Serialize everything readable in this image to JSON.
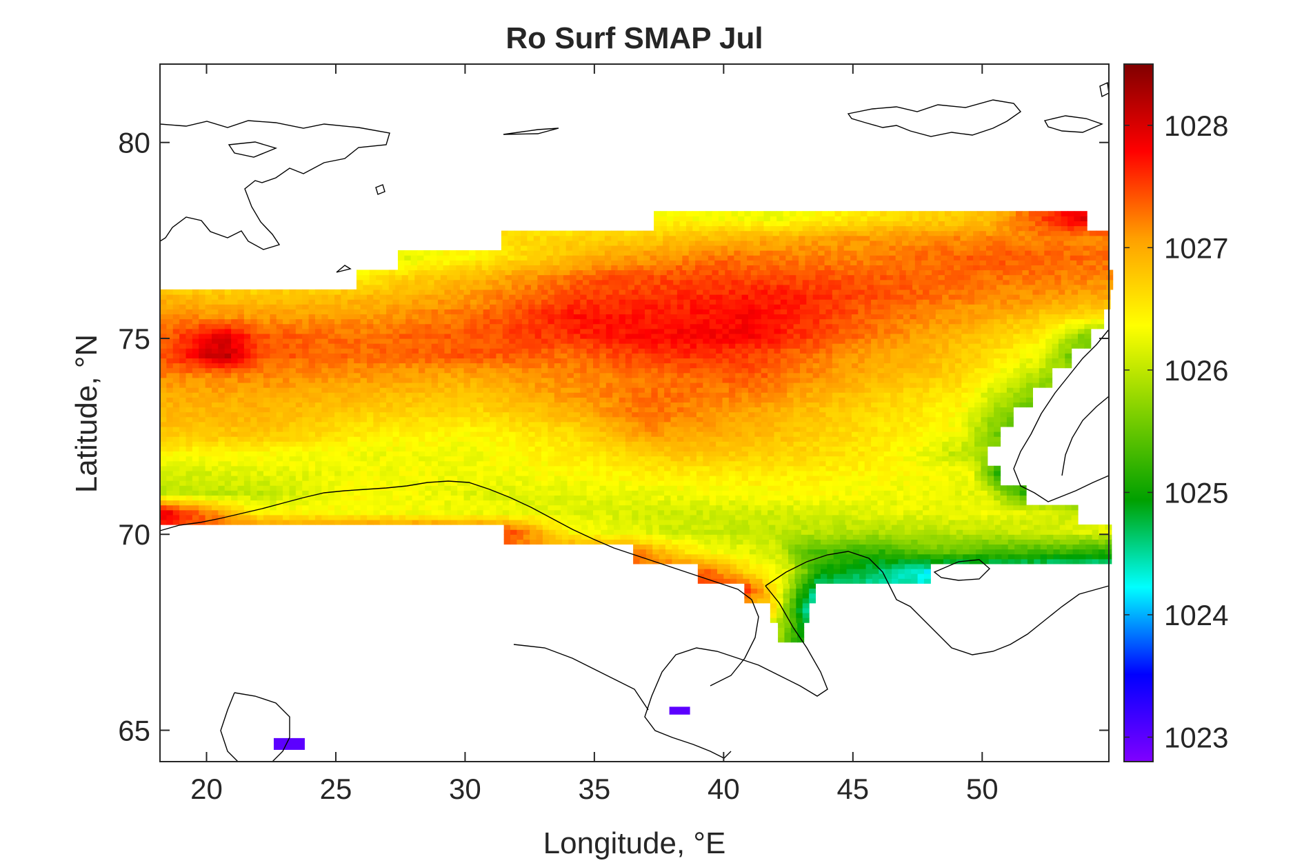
{
  "chart_data": {
    "type": "heatmap",
    "title": "Ro Surf SMAP Jul",
    "xlabel": "Longitude, °E",
    "ylabel": "Latitude, °N",
    "xlim": [
      18.2,
      54.9
    ],
    "ylim": [
      64.2,
      82.0
    ],
    "xticks": [
      20,
      25,
      30,
      35,
      40,
      45,
      50
    ],
    "yticks": [
      65,
      70,
      75,
      80
    ],
    "grid": false,
    "colorbar": {
      "range": [
        1022.8,
        1028.5
      ],
      "ticks": [
        1023,
        1024,
        1025,
        1026,
        1027,
        1028
      ],
      "colormap": [
        "#8000ff",
        "#0000ff",
        "#00ffff",
        "#00a000",
        "#80d000",
        "#ffff00",
        "#ffa000",
        "#ff0000",
        "#800000"
      ]
    },
    "field": {
      "lon_step": 0.25,
      "lat_step": 0.125,
      "rows": [
        {
          "lat": 78.0,
          "lon_start": 37.3,
          "lon_end": 54.0,
          "values": [
            [
              37.3,
              1026.4
            ],
            [
              42.0,
              1026.3
            ],
            [
              46.0,
              1026.6
            ],
            [
              50.0,
              1026.8
            ],
            [
              53.5,
              1027.9
            ]
          ]
        },
        {
          "lat": 77.5,
          "lon_start": 31.4,
          "lon_end": 54.9,
          "values": [
            [
              31.4,
              1026.6
            ],
            [
              35.0,
              1026.7
            ],
            [
              40.0,
              1026.9
            ],
            [
              45.0,
              1027.1
            ],
            [
              50.0,
              1027.2
            ],
            [
              54.9,
              1027.2
            ]
          ]
        },
        {
          "lat": 77.0,
          "lon_start": 27.4,
          "lon_end": 54.9,
          "values": [
            [
              27.4,
              1026.2
            ],
            [
              30.0,
              1026.4
            ],
            [
              35.0,
              1027.0
            ],
            [
              40.0,
              1027.3
            ],
            [
              45.0,
              1027.2
            ],
            [
              50.0,
              1027.4
            ],
            [
              54.9,
              1027.3
            ]
          ]
        },
        {
          "lat": 76.5,
          "lon_start": 25.8,
          "lon_end": 54.9,
          "values": [
            [
              25.8,
              1026.5
            ],
            [
              30.0,
              1026.9
            ],
            [
              35.0,
              1027.4
            ],
            [
              40.0,
              1027.5
            ],
            [
              45.0,
              1027.4
            ],
            [
              50.0,
              1027.3
            ],
            [
              54.9,
              1027.2
            ]
          ]
        },
        {
          "lat": 76.0,
          "lon_start": 18.2,
          "lon_end": 54.9,
          "values": [
            [
              18.2,
              1026.9
            ],
            [
              22.0,
              1026.8
            ],
            [
              26.0,
              1026.9
            ],
            [
              30.0,
              1027.1
            ],
            [
              34.0,
              1027.5
            ],
            [
              38.0,
              1027.6
            ],
            [
              42.0,
              1027.7
            ],
            [
              46.0,
              1027.4
            ],
            [
              50.0,
              1027.2
            ],
            [
              54.9,
              1027.0
            ]
          ]
        },
        {
          "lat": 75.5,
          "lon_start": 18.2,
          "lon_end": 54.6,
          "values": [
            [
              18.2,
              1027.2
            ],
            [
              22.0,
              1027.1
            ],
            [
              26.0,
              1027.1
            ],
            [
              30.0,
              1027.3
            ],
            [
              34.0,
              1027.7
            ],
            [
              38.0,
              1027.7
            ],
            [
              41.0,
              1027.8
            ],
            [
              45.0,
              1027.4
            ],
            [
              50.0,
              1027.0
            ],
            [
              54.0,
              1026.6
            ]
          ]
        },
        {
          "lat": 75.0,
          "lon_start": 18.2,
          "lon_end": 54.0,
          "values": [
            [
              18.2,
              1027.3
            ],
            [
              20.5,
              1028.0
            ],
            [
              22.0,
              1027.4
            ],
            [
              26.0,
              1027.3
            ],
            [
              30.0,
              1027.4
            ],
            [
              34.0,
              1027.6
            ],
            [
              38.0,
              1027.8
            ],
            [
              41.0,
              1027.8
            ],
            [
              45.0,
              1027.3
            ],
            [
              49.0,
              1026.9
            ],
            [
              52.0,
              1026.5
            ],
            [
              54.0,
              1025.6
            ]
          ]
        },
        {
          "lat": 74.5,
          "lon_start": 18.2,
          "lon_end": 53.4,
          "values": [
            [
              18.2,
              1027.4
            ],
            [
              20.5,
              1028.2
            ],
            [
              22.0,
              1027.4
            ],
            [
              26.0,
              1027.3
            ],
            [
              30.0,
              1027.4
            ],
            [
              34.0,
              1027.3
            ],
            [
              38.0,
              1027.6
            ],
            [
              41.0,
              1027.5
            ],
            [
              45.0,
              1027.1
            ],
            [
              49.0,
              1026.8
            ],
            [
              52.0,
              1026.3
            ],
            [
              53.4,
              1025.5
            ]
          ]
        },
        {
          "lat": 74.0,
          "lon_start": 18.2,
          "lon_end": 52.6,
          "values": [
            [
              18.2,
              1027.2
            ],
            [
              22.0,
              1027.2
            ],
            [
              26.0,
              1027.1
            ],
            [
              30.0,
              1027.0
            ],
            [
              34.0,
              1027.2
            ],
            [
              38.0,
              1027.3
            ],
            [
              41.0,
              1027.4
            ],
            [
              45.0,
              1027.0
            ],
            [
              49.0,
              1026.7
            ],
            [
              52.6,
              1025.8
            ]
          ]
        },
        {
          "lat": 73.5,
          "lon_start": 18.2,
          "lon_end": 51.9,
          "values": [
            [
              18.2,
              1027.0
            ],
            [
              22.0,
              1027.0
            ],
            [
              26.0,
              1026.9
            ],
            [
              30.0,
              1026.8
            ],
            [
              34.0,
              1027.1
            ],
            [
              37.0,
              1027.3
            ],
            [
              41.0,
              1027.2
            ],
            [
              45.0,
              1026.8
            ],
            [
              49.0,
              1026.5
            ],
            [
              51.9,
              1025.6
            ]
          ]
        },
        {
          "lat": 73.0,
          "lon_start": 18.2,
          "lon_end": 51.2,
          "values": [
            [
              18.2,
              1026.9
            ],
            [
              22.0,
              1026.9
            ],
            [
              26.0,
              1026.7
            ],
            [
              30.0,
              1026.6
            ],
            [
              34.0,
              1026.9
            ],
            [
              37.0,
              1027.3
            ],
            [
              41.0,
              1027.0
            ],
            [
              45.0,
              1026.7
            ],
            [
              49.0,
              1026.4
            ],
            [
              51.2,
              1025.5
            ]
          ]
        },
        {
          "lat": 72.5,
          "lon_start": 18.2,
          "lon_end": 50.7,
          "values": [
            [
              18.2,
              1026.8
            ],
            [
              22.0,
              1026.8
            ],
            [
              26.0,
              1026.5
            ],
            [
              30.0,
              1026.4
            ],
            [
              34.0,
              1026.6
            ],
            [
              37.0,
              1027.1
            ],
            [
              41.0,
              1026.9
            ],
            [
              45.0,
              1026.6
            ],
            [
              49.0,
              1026.3
            ],
            [
              50.7,
              1025.4
            ]
          ]
        },
        {
          "lat": 72.0,
          "lon_start": 18.2,
          "lon_end": 50.2,
          "values": [
            [
              18.2,
              1026.4
            ],
            [
              22.0,
              1026.4
            ],
            [
              26.0,
              1026.3
            ],
            [
              30.0,
              1026.3
            ],
            [
              34.0,
              1026.5
            ],
            [
              38.0,
              1026.8
            ],
            [
              42.0,
              1026.7
            ],
            [
              46.0,
              1026.5
            ],
            [
              50.2,
              1025.8
            ]
          ]
        },
        {
          "lat": 71.5,
          "lon_start": 18.2,
          "lon_end": 50.6,
          "values": [
            [
              18.2,
              1026.1
            ],
            [
              22.0,
              1026.2
            ],
            [
              26.0,
              1026.3
            ],
            [
              30.0,
              1026.3
            ],
            [
              34.0,
              1026.4
            ],
            [
              38.0,
              1026.5
            ],
            [
              42.0,
              1026.5
            ],
            [
              46.0,
              1026.4
            ],
            [
              49.5,
              1026.3
            ],
            [
              50.6,
              1025.0
            ]
          ]
        },
        {
          "lat": 71.0,
          "lon_start": 18.2,
          "lon_end": 51.5,
          "values": [
            [
              18.2,
              1026.0
            ],
            [
              22.0,
              1026.0
            ],
            [
              26.0,
              1026.4
            ],
            [
              30.0,
              1026.2
            ],
            [
              34.0,
              1026.2
            ],
            [
              38.0,
              1026.3
            ],
            [
              42.0,
              1026.4
            ],
            [
              46.0,
              1026.3
            ],
            [
              50.0,
              1026.2
            ],
            [
              51.5,
              1025.2
            ]
          ]
        },
        {
          "lat": 70.5,
          "lon_start": 18.2,
          "lon_end": 53.5,
          "values": [
            [
              18.2,
              1027.9
            ],
            [
              22.0,
              1026.4
            ],
            [
              30.0,
              1026.3
            ],
            [
              34.0,
              1026.2
            ],
            [
              38.0,
              1026.1
            ],
            [
              42.0,
              1026.1
            ],
            [
              46.0,
              1026.2
            ],
            [
              50.0,
              1026.3
            ],
            [
              53.5,
              1026.1
            ]
          ]
        },
        {
          "lat": 70.0,
          "lon_start": 31.5,
          "lon_end": 54.9,
          "values": [
            [
              31.5,
              1027.5
            ],
            [
              34.0,
              1026.4
            ],
            [
              38.0,
              1026.1
            ],
            [
              42.0,
              1026.0
            ],
            [
              46.0,
              1025.9
            ],
            [
              50.0,
              1026.0
            ],
            [
              54.9,
              1026.2
            ]
          ]
        },
        {
          "lat": 69.5,
          "lon_start": 36.5,
          "lon_end": 54.9,
          "values": [
            [
              36.5,
              1027.2
            ],
            [
              39.0,
              1026.4
            ],
            [
              42.0,
              1026.1
            ],
            [
              43.0,
              1025.4
            ],
            [
              46.0,
              1025.2
            ],
            [
              48.0,
              1025.5
            ],
            [
              52.0,
              1025.3
            ],
            [
              54.9,
              1025.1
            ]
          ]
        },
        {
          "lat": 69.0,
          "lon_start": 39.0,
          "lon_end": 48.0,
          "values": [
            [
              39.0,
              1027.4
            ],
            [
              41.0,
              1026.6
            ],
            [
              42.5,
              1026.1
            ],
            [
              43.5,
              1025.1
            ],
            [
              46.0,
              1024.6
            ],
            [
              48.0,
              1024.2
            ]
          ]
        },
        {
          "lat": 68.5,
          "lon_start": 40.8,
          "lon_end": 43.5,
          "values": [
            [
              40.8,
              1027.6
            ],
            [
              42.0,
              1026.4
            ],
            [
              43.0,
              1025.0
            ],
            [
              43.5,
              1024.4
            ]
          ]
        },
        {
          "lat": 68.0,
          "lon_start": 41.8,
          "lon_end": 43.3,
          "values": [
            [
              41.8,
              1026.6
            ],
            [
              42.5,
              1025.3
            ],
            [
              43.3,
              1024.3
            ]
          ]
        },
        {
          "lat": 67.5,
          "lon_start": 42.1,
          "lon_end": 42.9,
          "values": [
            [
              42.1,
              1025.8
            ],
            [
              42.9,
              1025.0
            ]
          ]
        }
      ],
      "patches": [
        {
          "lon": [
            22.6,
            23.8
          ],
          "lat": [
            64.5,
            64.8
          ],
          "value": 1023.0
        },
        {
          "lon": [
            37.9,
            38.7
          ],
          "lat": [
            65.4,
            65.6
          ],
          "value": 1023.0
        }
      ]
    }
  }
}
